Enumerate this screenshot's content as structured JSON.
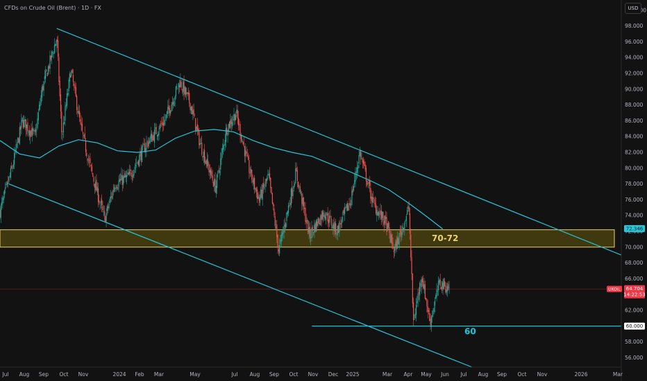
{
  "header": {
    "title": "CFDs on Crude Oil (Brent) · 1D · FX",
    "currency": "USD"
  },
  "price_badge": {
    "symbol": "UKOIL",
    "price": "64.704",
    "countdown": "14:22:53",
    "color": "#f23645"
  },
  "ma_badge": {
    "value": "72.346",
    "color": "#26c6da"
  },
  "support_badge": {
    "value": "60.000",
    "color": "#26c6da"
  },
  "annotations": {
    "zone_label": "70-72",
    "support_label": "60"
  },
  "colors": {
    "background": "#121212",
    "up": "#26a69a",
    "down": "#ef5350",
    "line": "#26c6da",
    "zone_fill": "#7a6a0e",
    "zone_border": "#e8d46a"
  },
  "chart_data": {
    "type": "candlestick",
    "title": "CFDs on Crude Oil (Brent) · 1D · FX",
    "ylim": [
      54.8,
      101.3
    ],
    "y_ticks": [
      "56.000",
      "58.000",
      "60.000",
      "62.000",
      "64.000",
      "66.000",
      "68.000",
      "70.000",
      "72.000",
      "74.000",
      "76.000",
      "78.000",
      "80.000",
      "82.000",
      "84.000",
      "86.000",
      "88.000",
      "90.000",
      "92.000",
      "94.000",
      "96.000",
      "98.000",
      "100.000"
    ],
    "x_ticks": [
      "Jul",
      "Aug",
      "Sep",
      "Oct",
      "Nov",
      "2024",
      "Feb",
      "Mar",
      "May",
      "Jul",
      "Aug",
      "Sep",
      "Oct",
      "Nov",
      "Dec",
      "2025",
      "Mar",
      "Apr",
      "May",
      "Jun",
      "Jul",
      "Aug",
      "Sep",
      "Oct",
      "Nov",
      "2026",
      "Mar"
    ],
    "x_range": [
      "2023-07-01",
      "2026-03-01"
    ],
    "last_price": 64.704,
    "zone": {
      "label": "70-72",
      "low": 70.0,
      "high": 72.2
    },
    "support": {
      "label": "60",
      "value": 60.0,
      "from": "2024-11-01"
    },
    "trend_lines": [
      {
        "from": {
          "date": "2023-09-28",
          "price": 97.7
        },
        "to": {
          "date": "2026-03-01",
          "price": 69.0
        }
      },
      {
        "from": {
          "date": "2023-07-15",
          "price": 78.0
        },
        "to": {
          "date": "2025-07-10",
          "price": 54.8
        }
      }
    ],
    "moving_average": [
      {
        "date": "2023-07-01",
        "price": 83.5
      },
      {
        "date": "2023-08-01",
        "price": 81.8
      },
      {
        "date": "2023-09-01",
        "price": 81.3
      },
      {
        "date": "2023-10-01",
        "price": 82.8
      },
      {
        "date": "2023-11-01",
        "price": 83.6
      },
      {
        "date": "2023-12-01",
        "price": 83.2
      },
      {
        "date": "2024-01-01",
        "price": 82.2
      },
      {
        "date": "2024-02-01",
        "price": 82.0
      },
      {
        "date": "2024-03-01",
        "price": 82.3
      },
      {
        "date": "2024-04-01",
        "price": 83.8
      },
      {
        "date": "2024-05-01",
        "price": 84.7
      },
      {
        "date": "2024-06-01",
        "price": 84.9
      },
      {
        "date": "2024-07-01",
        "price": 84.6
      },
      {
        "date": "2024-08-01",
        "price": 83.5
      },
      {
        "date": "2024-09-01",
        "price": 82.6
      },
      {
        "date": "2024-10-01",
        "price": 82.0
      },
      {
        "date": "2024-11-01",
        "price": 81.5
      },
      {
        "date": "2024-12-01",
        "price": 80.5
      },
      {
        "date": "2025-01-01",
        "price": 79.5
      },
      {
        "date": "2025-02-01",
        "price": 78.4
      },
      {
        "date": "2025-03-01",
        "price": 77.3
      },
      {
        "date": "2025-04-01",
        "price": 75.6
      },
      {
        "date": "2025-05-01",
        "price": 73.8
      },
      {
        "date": "2025-05-25",
        "price": 72.3
      }
    ],
    "price_path": [
      {
        "date": "2023-07-01",
        "price": 74.5
      },
      {
        "date": "2023-07-20",
        "price": 80.0
      },
      {
        "date": "2023-08-05",
        "price": 86.0
      },
      {
        "date": "2023-08-25",
        "price": 84.0
      },
      {
        "date": "2023-09-05",
        "price": 90.0
      },
      {
        "date": "2023-09-28",
        "price": 96.5
      },
      {
        "date": "2023-10-06",
        "price": 84.0
      },
      {
        "date": "2023-10-20",
        "price": 92.5
      },
      {
        "date": "2023-11-05",
        "price": 85.0
      },
      {
        "date": "2023-11-20",
        "price": 80.0
      },
      {
        "date": "2023-12-12",
        "price": 73.5
      },
      {
        "date": "2023-12-28",
        "price": 78.0
      },
      {
        "date": "2024-01-20",
        "price": 79.0
      },
      {
        "date": "2024-02-15",
        "price": 83.0
      },
      {
        "date": "2024-03-15",
        "price": 86.0
      },
      {
        "date": "2024-04-08",
        "price": 91.0
      },
      {
        "date": "2024-04-25",
        "price": 88.0
      },
      {
        "date": "2024-05-10",
        "price": 83.0
      },
      {
        "date": "2024-06-03",
        "price": 77.5
      },
      {
        "date": "2024-06-20",
        "price": 85.0
      },
      {
        "date": "2024-07-05",
        "price": 87.0
      },
      {
        "date": "2024-07-25",
        "price": 80.0
      },
      {
        "date": "2024-08-10",
        "price": 76.0
      },
      {
        "date": "2024-08-25",
        "price": 79.0
      },
      {
        "date": "2024-09-10",
        "price": 69.5
      },
      {
        "date": "2024-10-07",
        "price": 79.5
      },
      {
        "date": "2024-10-28",
        "price": 71.5
      },
      {
        "date": "2024-11-20",
        "price": 74.5
      },
      {
        "date": "2024-12-10",
        "price": 72.0
      },
      {
        "date": "2025-01-01",
        "price": 76.0
      },
      {
        "date": "2025-01-15",
        "price": 82.0
      },
      {
        "date": "2025-02-05",
        "price": 75.5
      },
      {
        "date": "2025-02-25",
        "price": 73.0
      },
      {
        "date": "2025-03-10",
        "price": 69.5
      },
      {
        "date": "2025-03-25",
        "price": 73.0
      },
      {
        "date": "2025-04-02",
        "price": 75.0
      },
      {
        "date": "2025-04-09",
        "price": 60.5
      },
      {
        "date": "2025-04-22",
        "price": 66.5
      },
      {
        "date": "2025-05-05",
        "price": 60.5
      },
      {
        "date": "2025-05-20",
        "price": 65.5
      },
      {
        "date": "2025-06-05",
        "price": 64.7
      }
    ]
  }
}
